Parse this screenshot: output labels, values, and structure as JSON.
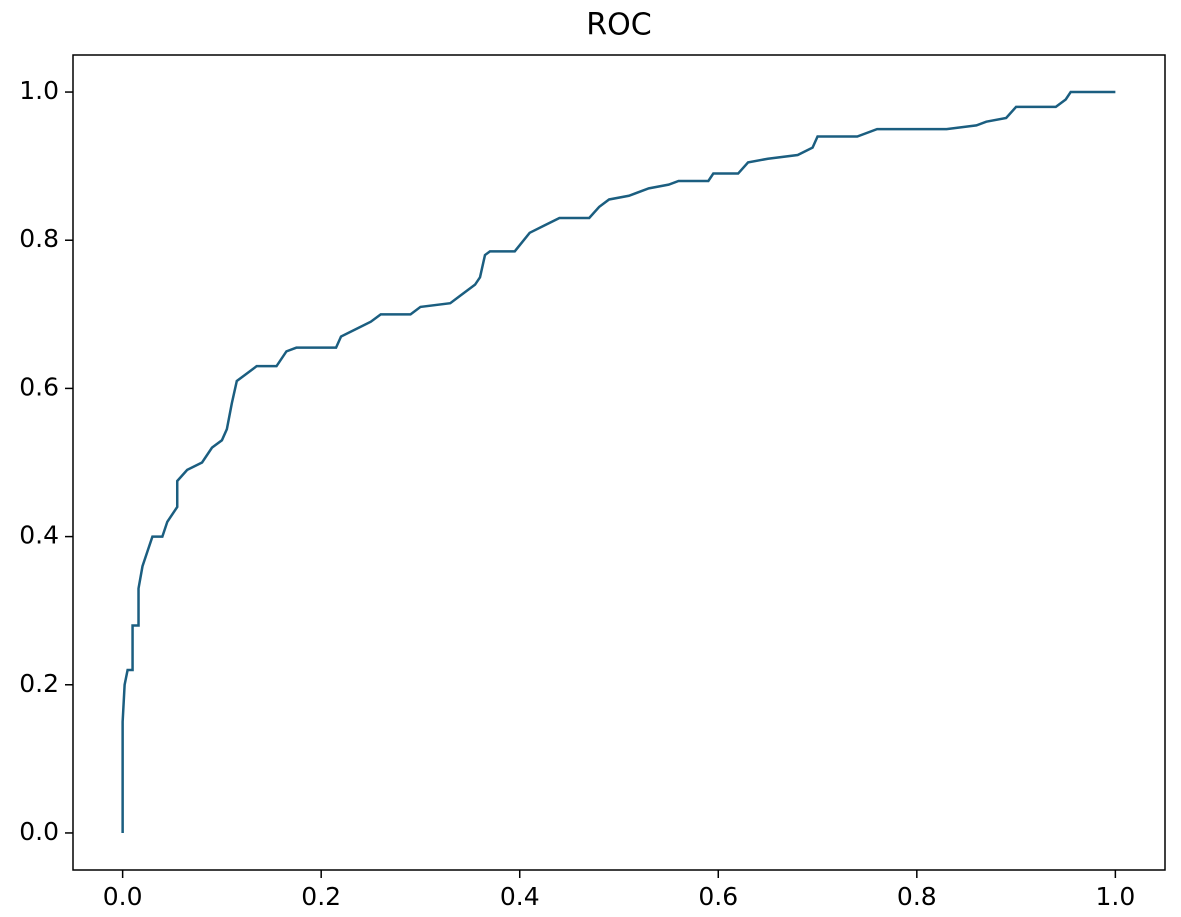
{
  "chart_data": {
    "type": "line",
    "title": "ROC",
    "color": "#1b5e80",
    "x": [
      0,
      0,
      0.002,
      0.005,
      0.01,
      0.01,
      0.016,
      0.016,
      0.02,
      0.025,
      0.03,
      0.04,
      0.045,
      0.055,
      0.055,
      0.065,
      0.08,
      0.09,
      0.1,
      0.105,
      0.11,
      0.115,
      0.125,
      0.135,
      0.155,
      0.165,
      0.175,
      0.215,
      0.22,
      0.235,
      0.25,
      0.26,
      0.29,
      0.3,
      0.33,
      0.34,
      0.355,
      0.36,
      0.365,
      0.37,
      0.395,
      0.41,
      0.425,
      0.44,
      0.47,
      0.48,
      0.49,
      0.51,
      0.53,
      0.55,
      0.56,
      0.59,
      0.595,
      0.62,
      0.63,
      0.65,
      0.68,
      0.695,
      0.7,
      0.74,
      0.76,
      0.83,
      0.86,
      0.87,
      0.89,
      0.9,
      0.94,
      0.95,
      0.955,
      1.0
    ],
    "y": [
      0,
      0.15,
      0.2,
      0.22,
      0.22,
      0.28,
      0.28,
      0.33,
      0.36,
      0.38,
      0.4,
      0.4,
      0.42,
      0.44,
      0.475,
      0.49,
      0.5,
      0.52,
      0.53,
      0.545,
      0.58,
      0.61,
      0.62,
      0.63,
      0.63,
      0.65,
      0.655,
      0.655,
      0.67,
      0.68,
      0.69,
      0.7,
      0.7,
      0.71,
      0.715,
      0.725,
      0.74,
      0.75,
      0.78,
      0.785,
      0.785,
      0.81,
      0.82,
      0.83,
      0.83,
      0.845,
      0.855,
      0.86,
      0.87,
      0.875,
      0.88,
      0.88,
      0.89,
      0.89,
      0.905,
      0.91,
      0.915,
      0.925,
      0.94,
      0.94,
      0.95,
      0.95,
      0.955,
      0.96,
      0.965,
      0.98,
      0.98,
      0.99,
      1.0,
      1.0
    ],
    "xlim": [
      -0.05,
      1.05
    ],
    "ylim": [
      -0.05,
      1.05
    ],
    "xticks": [
      {
        "value": 0,
        "label": "0.0"
      },
      0.2,
      0.4,
      0.6,
      0.8,
      {
        "value": 1,
        "label": "1.0"
      }
    ],
    "yticks": [
      {
        "value": 0,
        "label": "0.0"
      },
      0.2,
      0.4,
      0.6,
      0.8,
      {
        "value": 1,
        "label": "1.0"
      }
    ]
  }
}
